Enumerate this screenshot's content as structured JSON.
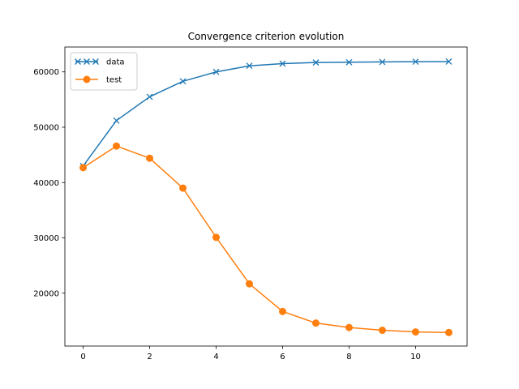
{
  "chart_data": {
    "type": "line",
    "title": "Convergence criterion evolution",
    "xlabel": "",
    "ylabel": "",
    "xlim": [
      -0.55,
      11.55
    ],
    "ylim": [
      10450,
      64500
    ],
    "x_ticks": [
      0,
      2,
      4,
      6,
      8,
      10
    ],
    "y_ticks": [
      20000,
      30000,
      40000,
      50000,
      60000
    ],
    "grid": false,
    "legend": "top-left",
    "x": [
      0,
      1,
      2,
      3,
      4,
      5,
      6,
      7,
      8,
      9,
      10,
      11
    ],
    "series": [
      {
        "name": "data",
        "color": "#1f77b4",
        "marker": "x",
        "values": [
          43000,
          51200,
          55500,
          58300,
          60000,
          61100,
          61500,
          61700,
          61750,
          61800,
          61850,
          61870
        ]
      },
      {
        "name": "test",
        "color": "#ff7f0e",
        "marker": "o",
        "values": [
          42700,
          46600,
          44400,
          39000,
          30100,
          21700,
          16700,
          14600,
          13800,
          13300,
          13000,
          12900
        ]
      }
    ]
  }
}
